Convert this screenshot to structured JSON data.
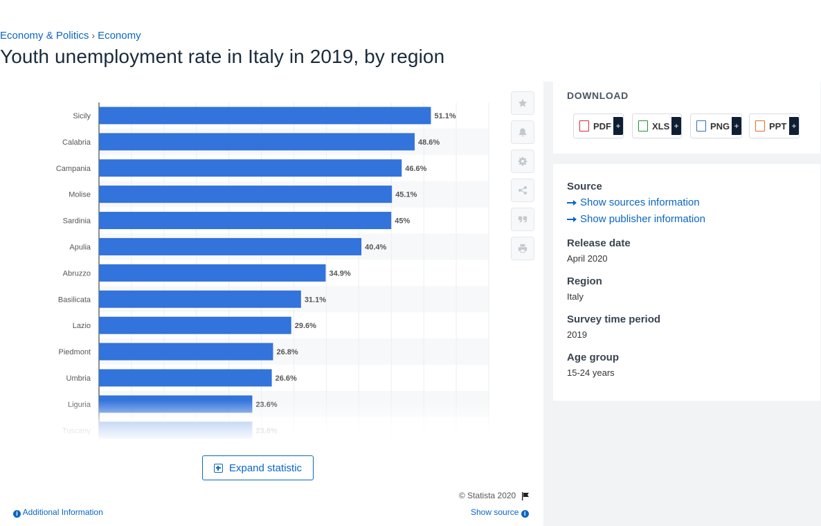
{
  "breadcrumb": {
    "items": [
      "Economy & Politics",
      "Economy"
    ],
    "separator": "›"
  },
  "page_title": "Youth unemployment rate in Italy in 2019, by region",
  "chart_data": {
    "type": "bar",
    "orientation": "horizontal",
    "categories": [
      "Sicily",
      "Calabria",
      "Campania",
      "Molise",
      "Sardinia",
      "Apulia",
      "Abruzzo",
      "Basilicata",
      "Lazio",
      "Piedmont",
      "Umbria",
      "Liguria",
      "Tuscany"
    ],
    "values": [
      51.1,
      48.6,
      46.6,
      45.1,
      45,
      40.4,
      34.9,
      31.1,
      29.6,
      26.8,
      26.6,
      23.6,
      23.6
    ],
    "labels": [
      "51.1%",
      "48.6%",
      "46.6%",
      "45.1%",
      "45%",
      "40.4%",
      "34.9%",
      "31.1%",
      "29.6%",
      "26.8%",
      "26.6%",
      "23.6%",
      "23.6%"
    ],
    "xlim": [
      0,
      60
    ],
    "grid": true,
    "bar_color": "#3273dc"
  },
  "tools": [
    "star-icon",
    "bell-icon",
    "gear-icon",
    "share-icon",
    "quote-icon",
    "print-icon"
  ],
  "expand_label": "Expand statistic",
  "copyright": "© Statista 2020",
  "additional_info": "Additional Information",
  "show_source": "Show source",
  "download": {
    "title": "DOWNLOAD",
    "buttons": [
      {
        "label": "PDF",
        "plus": "+",
        "color": "#d9263b"
      },
      {
        "label": "XLS",
        "plus": "+",
        "color": "#1f8f3a"
      },
      {
        "label": "PNG",
        "plus": "+",
        "color": "#2c6fb7"
      },
      {
        "label": "PPT",
        "plus": "+",
        "color": "#e8662a"
      }
    ]
  },
  "info": {
    "source_label": "Source",
    "sources_link": "Show sources information",
    "publisher_link": "Show publisher information",
    "release_label": "Release date",
    "release_value": "April 2020",
    "region_label": "Region",
    "region_value": "Italy",
    "survey_label": "Survey time period",
    "survey_value": "2019",
    "age_label": "Age group",
    "age_value": "15-24 years"
  }
}
